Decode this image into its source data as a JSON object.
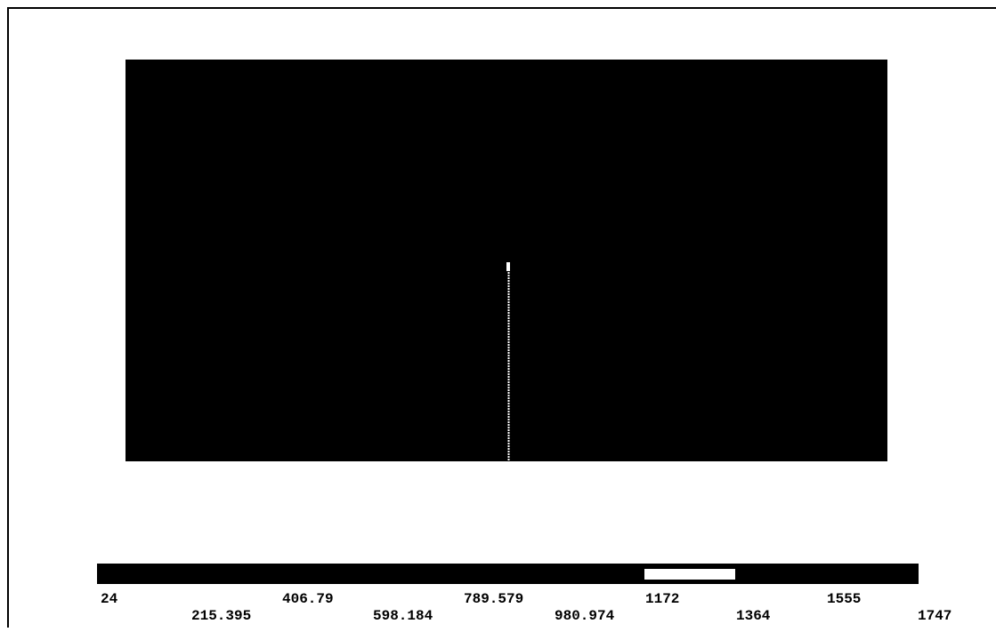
{
  "colorbar": {
    "labels": [
      "24",
      "215.395",
      "406.79",
      "598.184",
      "789.579",
      "980.974",
      "1172",
      "1364",
      "1555",
      "1747"
    ]
  }
}
